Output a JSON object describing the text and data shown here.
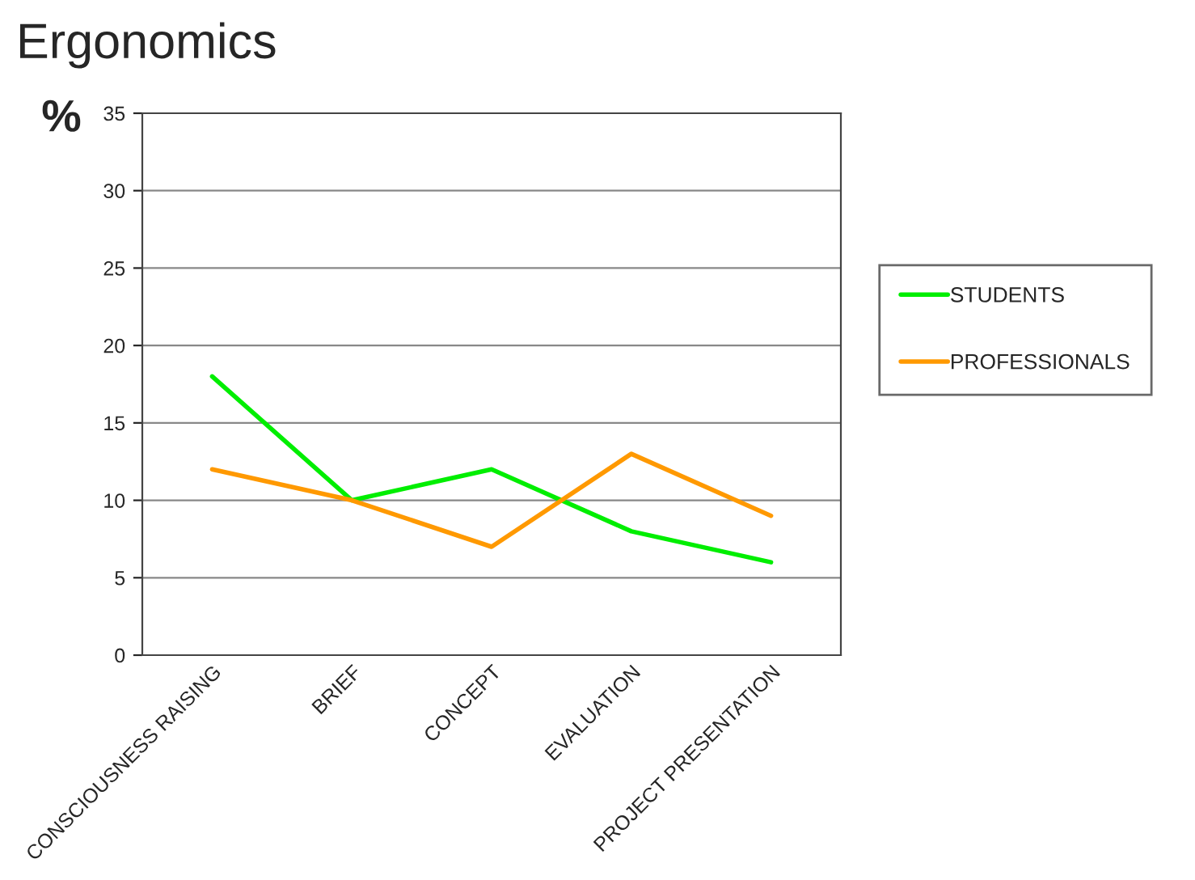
{
  "chart_data": {
    "type": "line",
    "title": "Ergonomics",
    "ylabel": "%",
    "categories": [
      "CONSCIOUSNESS RAISING",
      "BRIEF",
      "CONCEPT",
      "EVALUATION",
      "PROJECT PRESENTATION"
    ],
    "series": [
      {
        "name": "STUDENTS",
        "color": "#00ee00",
        "values": [
          18,
          10,
          12,
          8,
          6
        ]
      },
      {
        "name": "PROFESSIONALS",
        "color": "#ff9900",
        "values": [
          12,
          10,
          7,
          13,
          9
        ]
      }
    ],
    "ylim": [
      0,
      35
    ],
    "yticks": [
      0,
      5,
      10,
      15,
      20,
      25,
      30,
      35
    ],
    "grid": "y",
    "legend": "right",
    "marker": "none",
    "line_style": "solid"
  }
}
